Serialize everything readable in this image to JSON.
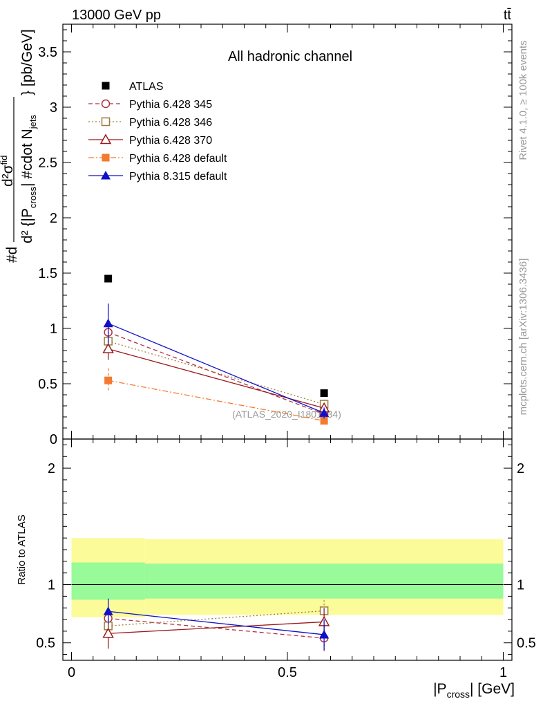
{
  "header": {
    "energy": "13000 GeV pp",
    "process": "tt̄"
  },
  "side": {
    "rivet": "Rivet 4.1.0, ≥ 100k events",
    "mcplots": "mcplots.cern.ch [arXiv:1306.3436]"
  },
  "chart_data": [
    {
      "type": "scatter",
      "title": "All hadronic channel",
      "watermark": "(ATLAS_2020_I1801434)",
      "ylabel": "#d d²σ^{fid} / d²{|P_{cross}| #cdot N_{jets}} [pb/GeV]",
      "xlim": [
        -0.02,
        1.02
      ],
      "ylim": [
        0,
        3.75
      ],
      "yticks": [
        "0",
        "0.5",
        "1",
        "1.5",
        "2",
        "2.5",
        "3",
        "3.5"
      ],
      "x": [
        0.085,
        0.585
      ],
      "series": [
        {
          "name": "ATLAS",
          "color": "#000000",
          "marker": "square-filled",
          "line": "none",
          "values": [
            1.45,
            0.415
          ],
          "err": [
            0,
            0
          ]
        },
        {
          "name": "Pythia 6.428 345",
          "color": "#b03040",
          "marker": "circle-open",
          "line": "dashed",
          "values": [
            0.965,
            0.225
          ],
          "err": [
            0.09,
            0.03
          ]
        },
        {
          "name": "Pythia 6.428 346",
          "color": "#9c7c3c",
          "marker": "square-open",
          "line": "dotted",
          "values": [
            0.885,
            0.315
          ],
          "err": [
            0.085,
            0.04
          ]
        },
        {
          "name": "Pythia 6.428 370",
          "color": "#9b1b1b",
          "marker": "triangle-open",
          "line": "solid",
          "values": [
            0.815,
            0.28
          ],
          "err": [
            0.1,
            0.035
          ]
        },
        {
          "name": "Pythia 6.428 default",
          "color": "#f47a30",
          "marker": "square-filled",
          "line": "dashdot",
          "values": [
            0.53,
            0.165
          ],
          "err": [
            0.11,
            0.02
          ]
        },
        {
          "name": "Pythia 8.315 default",
          "color": "#1010c8",
          "marker": "triangle-filled",
          "line": "solid",
          "values": [
            1.045,
            0.235
          ],
          "err": [
            0.18,
            0.05
          ]
        }
      ]
    },
    {
      "type": "scatter",
      "ylabel": "Ratio to ATLAS",
      "xlabel": "|P_cross| [GeV]",
      "xlim": [
        -0.02,
        1.02
      ],
      "ylim": [
        0.35,
        2.25
      ],
      "yticks": [
        "0.5",
        "1",
        "2"
      ],
      "xticks": [
        "0",
        "0.5",
        "1"
      ],
      "bands": [
        {
          "name": "yellow",
          "color": "#fbfb9a",
          "bins": [
            {
              "from": 0.0,
              "to": 0.17,
              "lo": 0.72,
              "hi": 1.4
            },
            {
              "from": 0.17,
              "to": 1.0,
              "lo": 0.74,
              "hi": 1.39
            }
          ]
        },
        {
          "name": "green",
          "color": "#98fa98",
          "bins": [
            {
              "from": 0.0,
              "to": 0.17,
              "lo": 0.87,
              "hi": 1.19
            },
            {
              "from": 0.17,
              "to": 1.0,
              "lo": 0.88,
              "hi": 1.18
            }
          ]
        }
      ],
      "x": [
        0.085,
        0.585
      ],
      "series": [
        {
          "name": "Pythia 6.428 345",
          "values": [
            0.71,
            0.54
          ],
          "err": [
            0.1,
            0.12
          ]
        },
        {
          "name": "Pythia 6.428 346",
          "values": [
            0.645,
            0.775
          ],
          "err": [
            0.08,
            0.09
          ]
        },
        {
          "name": "Pythia 6.428 370",
          "values": [
            0.58,
            0.68
          ],
          "err": [
            0.13,
            0.12
          ]
        },
        {
          "name": "Pythia 8.315 default",
          "values": [
            0.77,
            0.57
          ],
          "err": [
            0.11,
            0.13
          ]
        }
      ]
    }
  ]
}
